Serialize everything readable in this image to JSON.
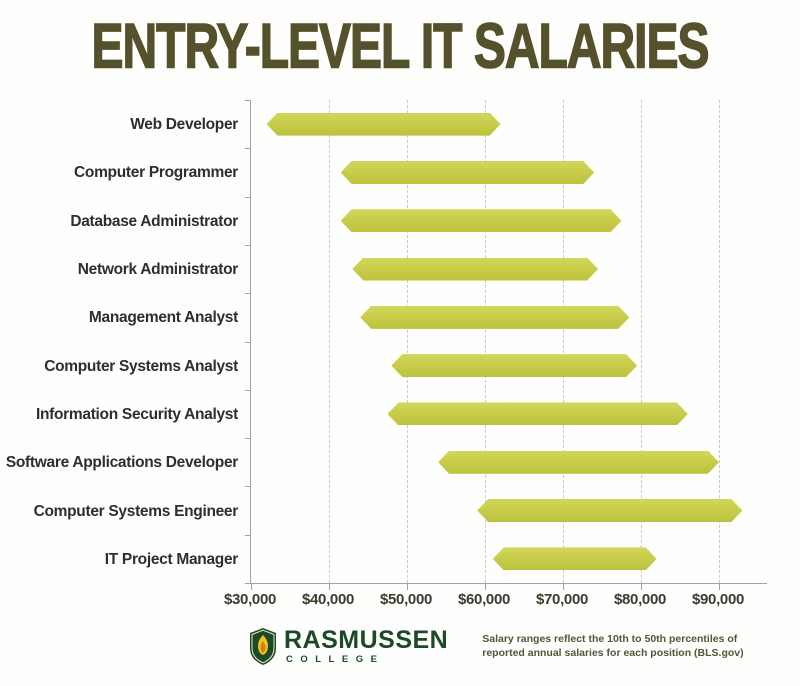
{
  "title": "ENTRY-LEVEL IT SALARIES",
  "chart_data": {
    "type": "bar",
    "subtype": "horizontal-range",
    "title": "ENTRY-LEVEL IT SALARIES",
    "categories": [
      "Web Developer",
      "Computer Programmer",
      "Database Administrator",
      "Network Administrator",
      "Management Analyst",
      "Computer Systems Analyst",
      "Information Security Analyst",
      "Software Applications Developer",
      "Computer Systems Engineer",
      "IT Project Manager"
    ],
    "series": [
      {
        "name": "Salary range (10th to 50th percentile)",
        "ranges": [
          [
            32000,
            62000
          ],
          [
            41500,
            74000
          ],
          [
            41500,
            77500
          ],
          [
            43000,
            74500
          ],
          [
            44000,
            78500
          ],
          [
            48000,
            79500
          ],
          [
            47500,
            86000
          ],
          [
            54000,
            90000
          ],
          [
            59000,
            93000
          ],
          [
            61000,
            82000
          ]
        ]
      }
    ],
    "xlabel": "",
    "ylabel": "",
    "xlim": [
      30000,
      96000
    ],
    "x_ticks": [
      30000,
      40000,
      50000,
      60000,
      70000,
      80000,
      90000
    ],
    "x_tick_labels": [
      "$30,000",
      "$40,000",
      "$50,000",
      "$60,000",
      "$70,000",
      "$80,000",
      "$90,000"
    ],
    "grid": "vertical-dashed",
    "legend": "none"
  },
  "footer": {
    "logo": {
      "name": "Rasmussen College",
      "line1": "RASMUSSEN",
      "line2": "COLLEGE",
      "shield_icon": "shield-flame-icon"
    },
    "note_line1": "Salary ranges reflect the 10th to 50th percentiles of",
    "note_line2": "reported annual salaries for each position (BLS.gov)"
  },
  "colors": {
    "title_text": "#55512c",
    "bar_top": "#d2d75a",
    "bar_bottom": "#bcc23c",
    "bar_main": "#c8cd4a",
    "axis": "#a3a3a3",
    "gridline": "#c9c9c9",
    "category_text": "#2e2e2e",
    "x_label_text": "#3c3c2d",
    "logo_green": "#1c4a28",
    "flame_gold": "#f0c419",
    "note_text": "#55543c",
    "background": "#fefefc"
  }
}
